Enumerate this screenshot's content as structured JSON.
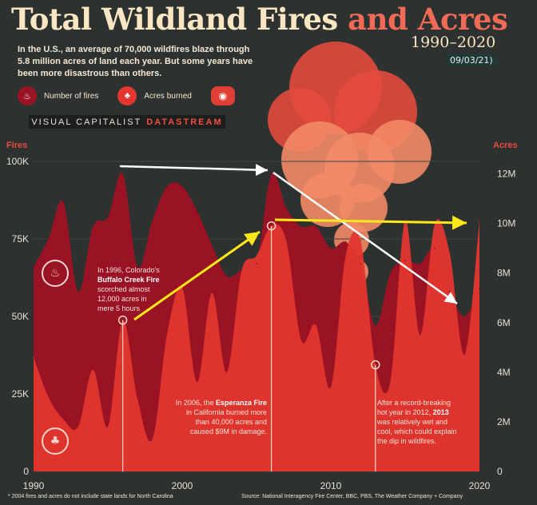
{
  "header": {
    "title_main": "Total Wildland Fires",
    "title_accent": "and Acres",
    "years": "1990–2020",
    "date": "09/03/21)",
    "intro": "In the U.S., an average of 70,000 wildfires blaze through 5.8 million acres of land each year. But some years have been more disastrous than others."
  },
  "legend": {
    "fires": "Number of fires",
    "acres": "Acres burned"
  },
  "brand": {
    "part1": "VISUAL CAPITALIST",
    "part2": "DATASTREAM"
  },
  "colors": {
    "background": "#2d3230",
    "fires": "#9a1324",
    "acres": "#e2362f",
    "accent": "#f06a55"
  },
  "icons": {
    "fires": "flame-icon",
    "acres": "tree-fire-icon",
    "logo": "visual-capitalist-logo-icon"
  },
  "annotations": {
    "a1996": {
      "pre": "In 1996, Colorado's",
      "bold": "Buffalo Creek Fire",
      "post1": "scorched almost",
      "post2": "12,000 acres in",
      "post3": "mere 5 hours"
    },
    "a2006": {
      "pre": "In 2006, the",
      "bold": "Esperanza Fire",
      "post1": "in California burned more",
      "post2": "than 40,000 acres and",
      "post3": "caused $9M in damage."
    },
    "a2013": {
      "pre1": "After a record-breaking",
      "pre2": "hot year in 2012,",
      "bold": "2013",
      "post1": "was relatively wet and",
      "post2": "cool, which could explain",
      "post3": "the dip in wildfires."
    }
  },
  "footer": {
    "footnote": "* 2004 fires and acres do not include state lands for North Carolina",
    "source": "Source: National Interagency Fire Center, BBC, PBS, The Weather Company + Company"
  },
  "chart_data": {
    "type": "area",
    "title": "Total Wildland Fires and Acres",
    "subtitle": "1990–2020",
    "x": [
      1990,
      1991,
      1992,
      1993,
      1994,
      1995,
      1996,
      1997,
      1998,
      1999,
      2000,
      2001,
      2002,
      2003,
      2004,
      2005,
      2006,
      2007,
      2008,
      2009,
      2010,
      2011,
      2012,
      2013,
      2014,
      2015,
      2016,
      2017,
      2018,
      2019,
      2020
    ],
    "x_ticks": [
      "1990",
      "2000",
      "2010",
      "2020"
    ],
    "y_left": {
      "label": "Fires",
      "ticks": [
        "100K",
        "75K",
        "50K",
        "25K",
        "0"
      ],
      "range": [
        0,
        100000
      ]
    },
    "y_right": {
      "label": "Acres",
      "ticks": [
        "12M",
        "10M",
        "8M",
        "6M",
        "4M",
        "2M",
        "0"
      ],
      "range": [
        0,
        12500000
      ]
    },
    "series": [
      {
        "name": "Number of fires",
        "axis": "left",
        "values": [
          66000,
          75000,
          87000,
          58000,
          79000,
          82000,
          96000,
          66000,
          81000,
          92000,
          92000,
          84000,
          73000,
          63000,
          65000,
          67000,
          96000,
          85000,
          79000,
          79000,
          72000,
          74000,
          67000,
          47000,
          64000,
          68000,
          67000,
          72000,
          58000,
          50000,
          59000
        ]
      },
      {
        "name": "Acres burned",
        "axis": "right",
        "values": [
          4600000,
          3000000,
          2100000,
          1800000,
          4100000,
          1800000,
          6100000,
          2900000,
          1300000,
          5600000,
          7400000,
          3600000,
          7200000,
          4000000,
          8100000,
          8700000,
          9900000,
          9300000,
          5300000,
          5900000,
          3400000,
          8700000,
          9300000,
          4300000,
          3600000,
          10100000,
          5500000,
          10000000,
          8800000,
          4700000,
          10100000
        ]
      }
    ],
    "highlight_years": [
      1996,
      2006,
      2013
    ],
    "legend_position": "top-left"
  }
}
